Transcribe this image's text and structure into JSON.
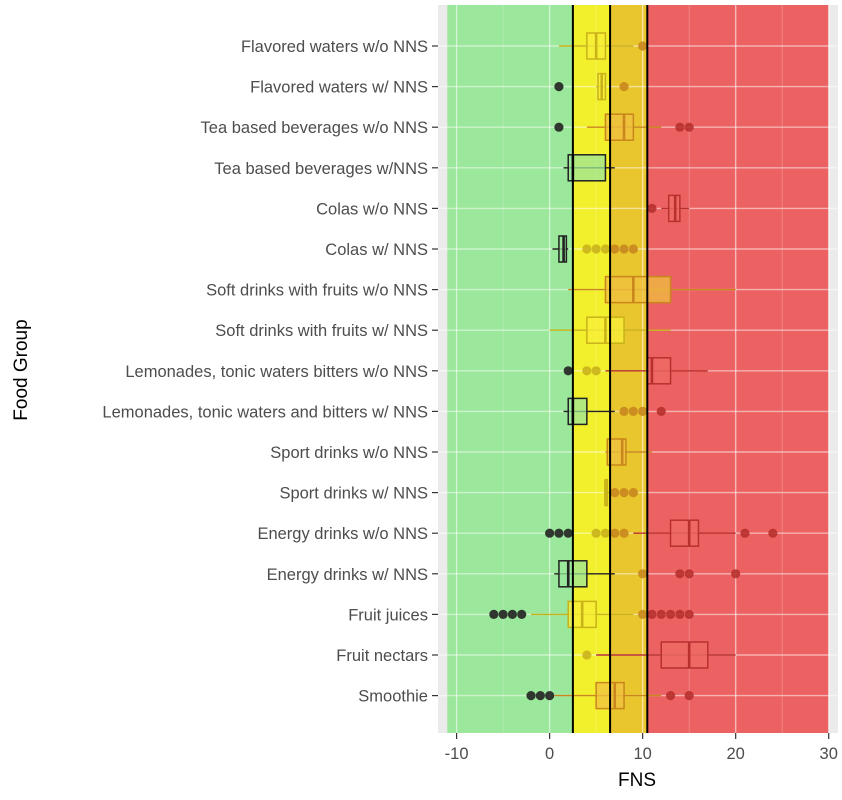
{
  "chart_data": {
    "type": "boxplot",
    "xlabel": "FNS",
    "ylabel": "Food Group",
    "xlim": [
      -12,
      31
    ],
    "x_ticks": [
      -10,
      0,
      10,
      20,
      30
    ],
    "grid": true,
    "zones": [
      {
        "from": -11,
        "to": 2.5,
        "color": "#9be79b"
      },
      {
        "from": 2.5,
        "to": 6.5,
        "color": "#f2ef2c"
      },
      {
        "from": 6.5,
        "to": 10.5,
        "color": "#e9c52e"
      },
      {
        "from": 10.5,
        "to": 30,
        "color": "#ec6262"
      }
    ],
    "thresholds": [
      2.5,
      6.5,
      10.5
    ],
    "categories": [
      "Flavored waters w/o NNS",
      "Flavored waters w/ NNS",
      "Tea based beverages w/o NNS",
      "Tea based beverages w/NNS",
      "Colas w/o NNS",
      "Colas w/ NNS",
      "Soft drinks with fruits w/o NNS",
      "Soft drinks with fruits w/ NNS",
      "Lemonades, tonic waters bitters w/o NNS",
      "Lemonades, tonic waters and bitters w/ NNS",
      "Sport drinks w/o NNS",
      "Sport drinks w/ NNS",
      "Energy drinks w/o NNS",
      "Energy drinks w/ NNS",
      "Fruit juices",
      "Fruit nectars",
      "Smoothie"
    ],
    "boxes": [
      {
        "whisker_low": 1,
        "q1": 4,
        "median": 5,
        "q3": 6,
        "whisker_high": 9,
        "outliers": [
          10
        ]
      },
      {
        "whisker_low": 5,
        "q1": 5.2,
        "median": 5.6,
        "q3": 6,
        "whisker_high": 6,
        "outliers": [
          1,
          8
        ]
      },
      {
        "whisker_low": 4,
        "q1": 6,
        "median": 8,
        "q3": 9,
        "whisker_high": 12,
        "outliers": [
          1,
          14,
          15
        ]
      },
      {
        "whisker_low": 1.5,
        "q1": 2,
        "median": 2.5,
        "q3": 6,
        "whisker_high": 7,
        "outliers": []
      },
      {
        "whisker_low": 12,
        "q1": 12.8,
        "median": 13.5,
        "q3": 14,
        "whisker_high": 15,
        "outliers": [
          11
        ]
      },
      {
        "whisker_low": 0.3,
        "q1": 1,
        "median": 1.5,
        "q3": 1.8,
        "whisker_high": 2,
        "outliers": [
          4,
          5,
          6,
          7,
          8,
          9
        ]
      },
      {
        "whisker_low": 2,
        "q1": 6,
        "median": 9,
        "q3": 13,
        "whisker_high": 20,
        "outliers": []
      },
      {
        "whisker_low": 0,
        "q1": 4,
        "median": 6,
        "q3": 8,
        "whisker_high": 13,
        "outliers": []
      },
      {
        "whisker_low": 6,
        "q1": 10.5,
        "median": 11,
        "q3": 13,
        "whisker_high": 17,
        "outliers": [
          2,
          4,
          5
        ]
      },
      {
        "whisker_low": 1.5,
        "q1": 2,
        "median": 2.5,
        "q3": 4,
        "whisker_high": 7,
        "outliers": [
          8,
          9,
          10,
          12
        ]
      },
      {
        "whisker_low": 6,
        "q1": 6.2,
        "median": 7.8,
        "q3": 8.2,
        "whisker_high": 11,
        "outliers": []
      },
      {
        "whisker_low": 6,
        "q1": 6,
        "median": 6,
        "q3": 6.2,
        "whisker_high": 6.5,
        "outliers": [
          7,
          8,
          9
        ]
      },
      {
        "whisker_low": 9,
        "q1": 13,
        "median": 15,
        "q3": 16,
        "whisker_high": 20,
        "outliers": [
          0,
          1,
          2,
          5,
          6,
          7,
          8,
          21,
          24
        ]
      },
      {
        "whisker_low": 0.5,
        "q1": 1,
        "median": 2,
        "q3": 4,
        "whisker_high": 7,
        "outliers": [
          10,
          14,
          15,
          20
        ]
      },
      {
        "whisker_low": -2,
        "q1": 2,
        "median": 3.5,
        "q3": 5,
        "whisker_high": 9,
        "outliers": [
          -6,
          -5,
          -4,
          -3,
          10,
          11,
          12,
          13,
          14,
          15
        ]
      },
      {
        "whisker_low": 5,
        "q1": 12,
        "median": 15,
        "q3": 17,
        "whisker_high": 20,
        "outliers": [
          4
        ]
      },
      {
        "whisker_low": 0.5,
        "q1": 5,
        "median": 7,
        "q3": 8,
        "whisker_high": 12,
        "outliers": [
          -2,
          -1,
          0,
          13,
          15
        ]
      }
    ]
  }
}
